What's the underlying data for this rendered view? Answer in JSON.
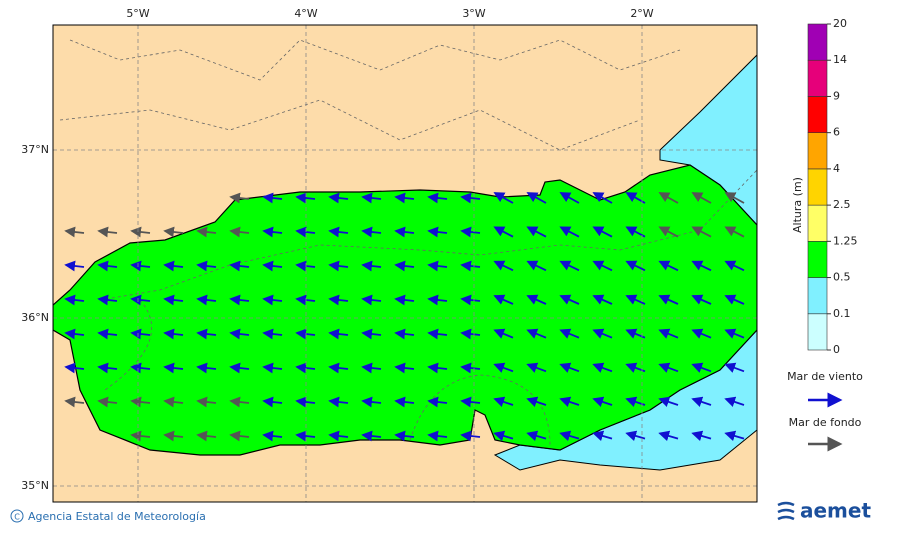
{
  "map": {
    "lon_labels": [
      "5°W",
      "4°W",
      "3°W",
      "2°W"
    ],
    "lat_labels": [
      "37°N",
      "36°N",
      "35°N"
    ]
  },
  "colorbar": {
    "title": "Altura (m)",
    "levels": [
      0,
      0.1,
      0.5,
      1.25,
      2.5,
      4,
      6,
      9,
      14,
      20
    ],
    "colors": [
      "#ccffff",
      "#80f0ff",
      "#00ff00",
      "#ffff66",
      "#ffd400",
      "#ffa500",
      "#ff0000",
      "#e6007a",
      "#a000b4"
    ]
  },
  "legend": {
    "wind_sea": "Mar de viento",
    "swell": "Mar de fondo"
  },
  "footer": {
    "credit": "Agencia Estatal de Meteorología",
    "logo": "aemet"
  }
}
